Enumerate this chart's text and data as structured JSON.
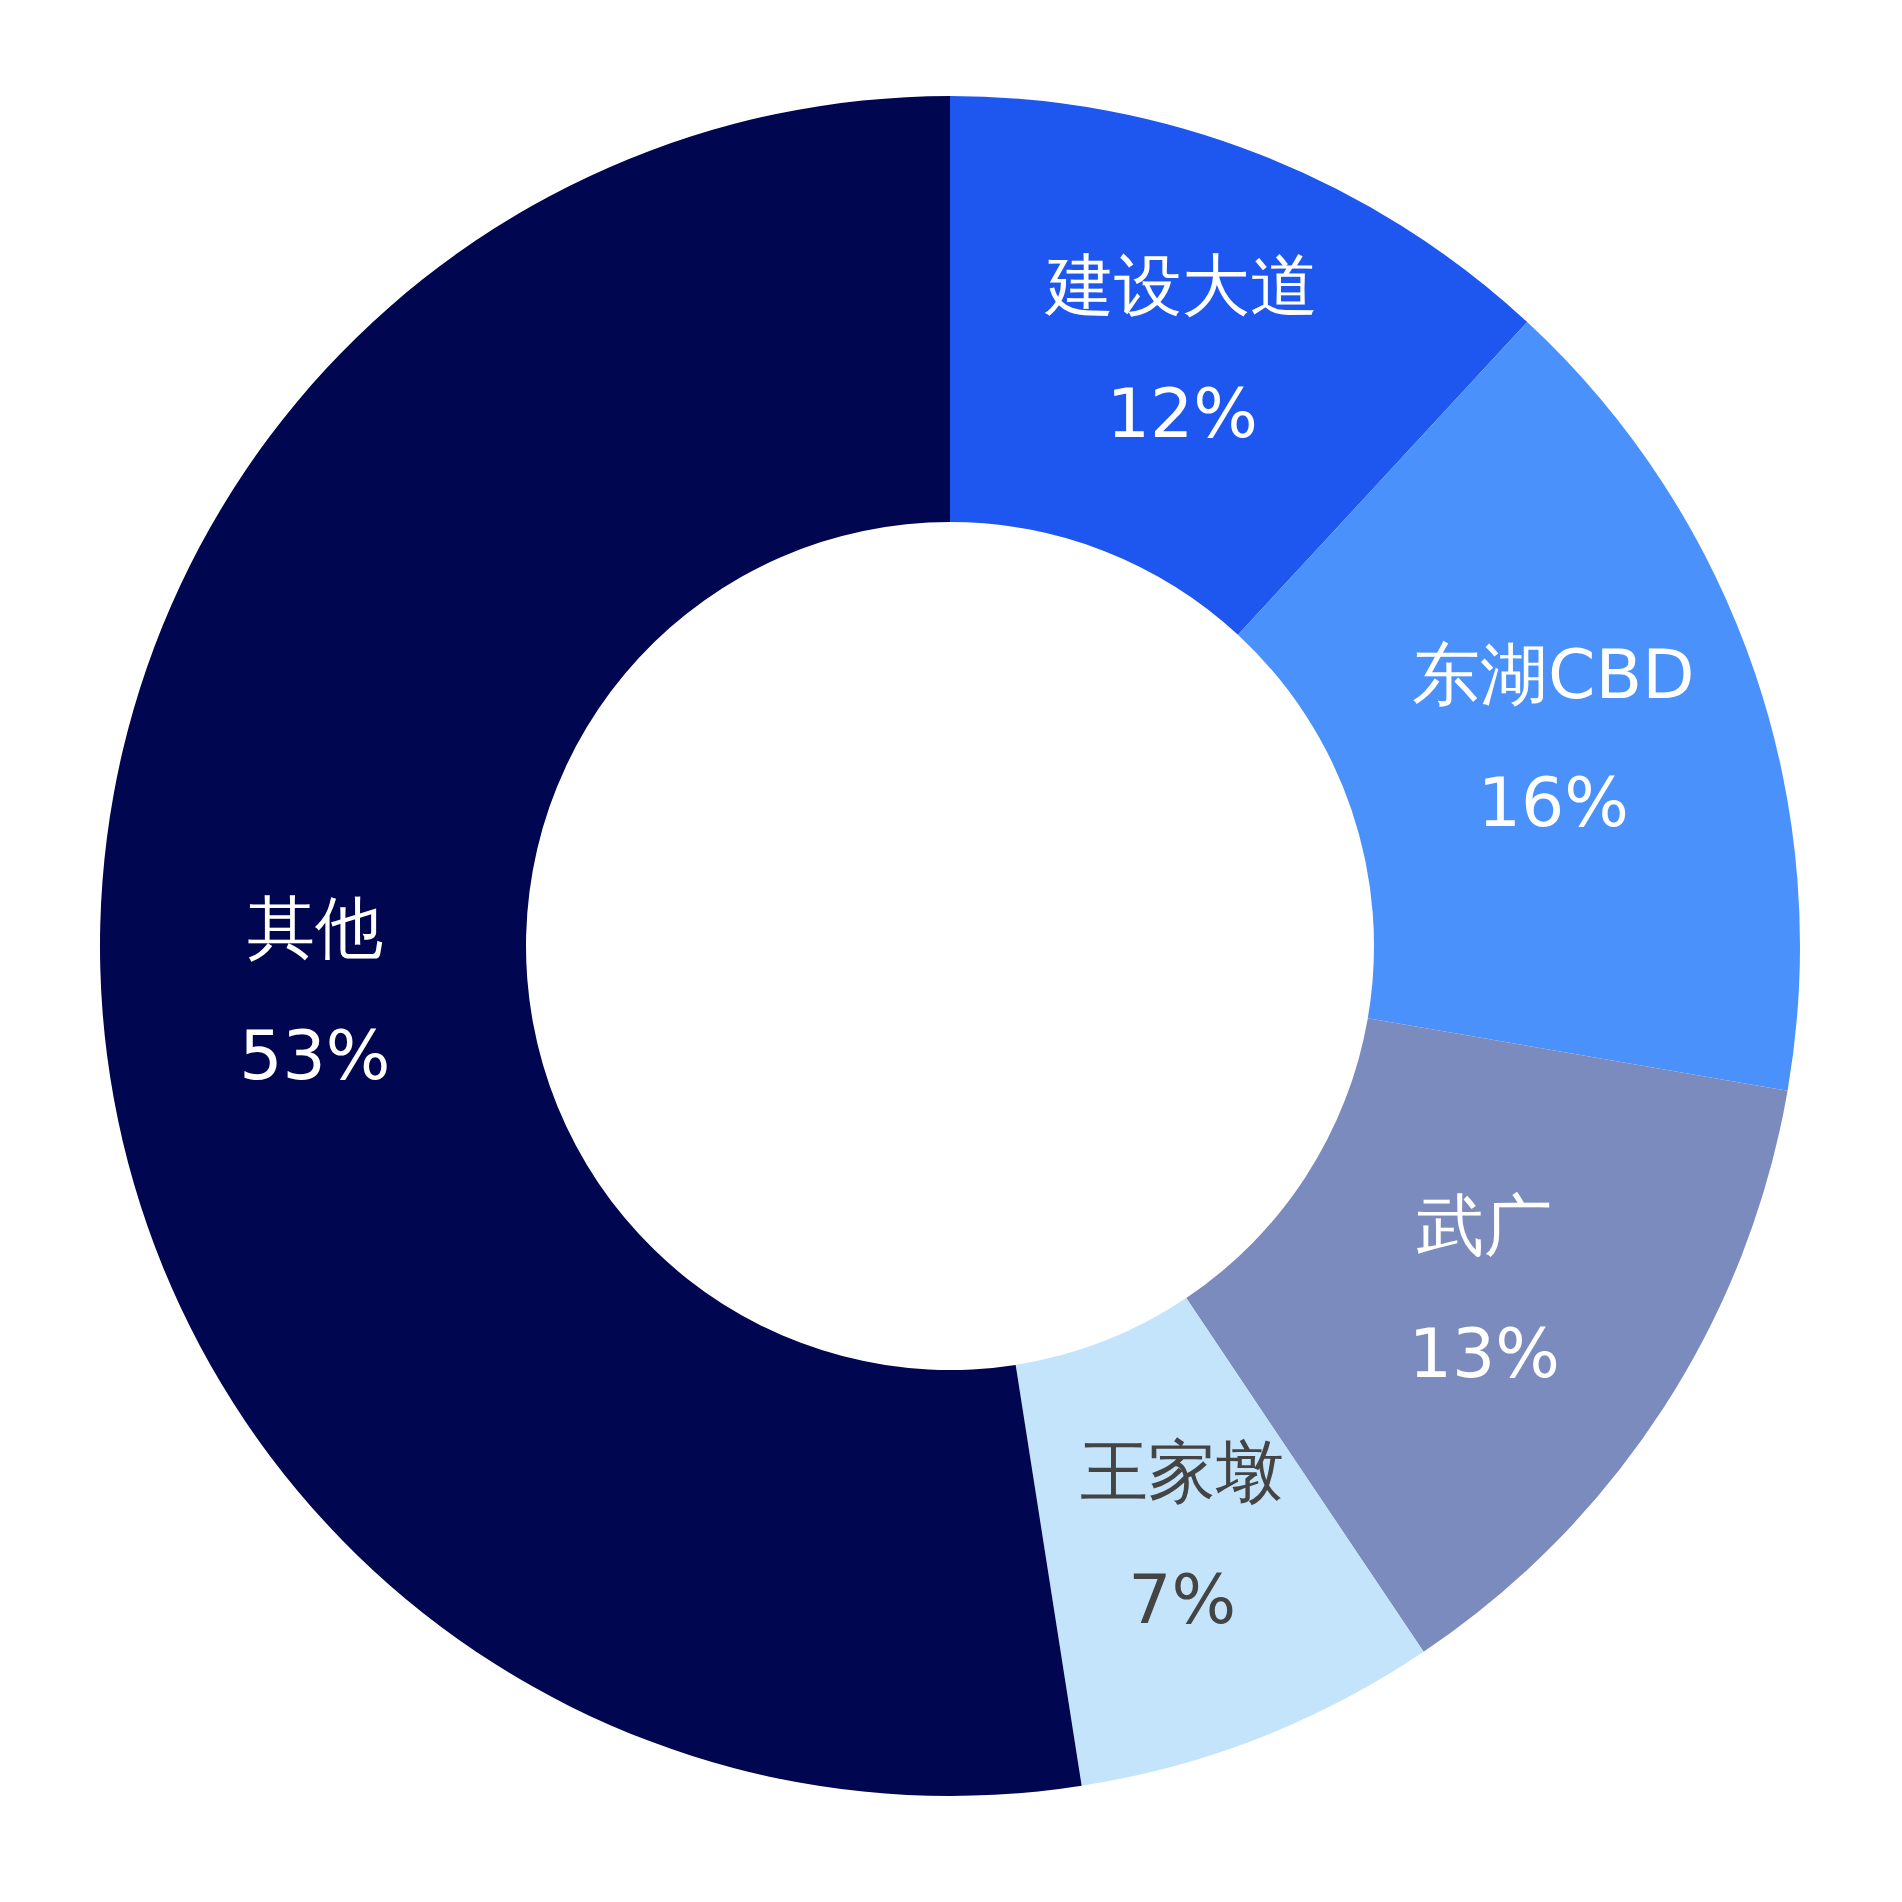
{
  "chart_data": {
    "type": "donut",
    "categories": [
      "建设大道",
      "东湖CBD",
      "武广",
      "王家墩",
      "其他"
    ],
    "values": [
      12,
      16,
      13,
      7,
      53
    ],
    "colors": [
      "#1e56f0",
      "#4a91fb",
      "#7b8bbd",
      "#c4e4fb",
      "#000650"
    ],
    "value_labels": [
      "12%",
      "16%",
      "13%",
      "7%",
      "53%"
    ]
  }
}
